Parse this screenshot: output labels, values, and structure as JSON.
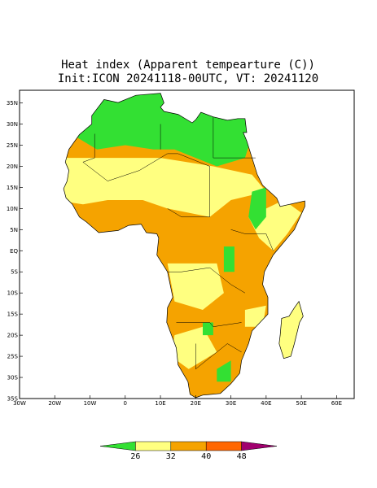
{
  "title": "Heat index (Apparent tempearture (C))",
  "subtitle": "Init:ICON 20241118-00UTC, VT: 20241120",
  "map": {
    "xlim": [
      -30,
      65
    ],
    "ylim": [
      -35,
      38
    ],
    "xticks": [
      {
        "value": -30,
        "label": "30W"
      },
      {
        "value": -20,
        "label": "20W"
      },
      {
        "value": -10,
        "label": "10W"
      },
      0,
      {
        "value": 10,
        "label": "10E"
      },
      {
        "value": 20,
        "label": "20E"
      },
      {
        "value": 30,
        "label": "30E"
      },
      {
        "value": 40,
        "label": "40E"
      },
      {
        "value": 50,
        "label": "50E"
      },
      {
        "value": 60,
        "label": "60E"
      }
    ],
    "yticks": [
      {
        "value": 35,
        "label": "35N"
      },
      {
        "value": 30,
        "label": "30N"
      },
      {
        "value": 25,
        "label": "25N"
      },
      {
        "value": 20,
        "label": "20N"
      },
      {
        "value": 15,
        "label": "15N"
      },
      {
        "value": 10,
        "label": "10N"
      },
      {
        "value": 5,
        "label": "5N"
      },
      {
        "value": 0,
        "label": "EQ"
      },
      {
        "value": -5,
        "label": "5S"
      },
      {
        "value": -10,
        "label": "10S"
      },
      {
        "value": -15,
        "label": "15S"
      },
      {
        "value": -20,
        "label": "20S"
      },
      {
        "value": -25,
        "label": "25S"
      },
      {
        "value": -30,
        "label": "30S"
      },
      {
        "value": -35,
        "label": "35S"
      }
    ]
  },
  "colorbar": {
    "levels": [
      26,
      32,
      40,
      48
    ],
    "colors": [
      "#33e033",
      "#ffff80",
      "#f5a300",
      "#ff6600",
      "#a0006e"
    ]
  }
}
